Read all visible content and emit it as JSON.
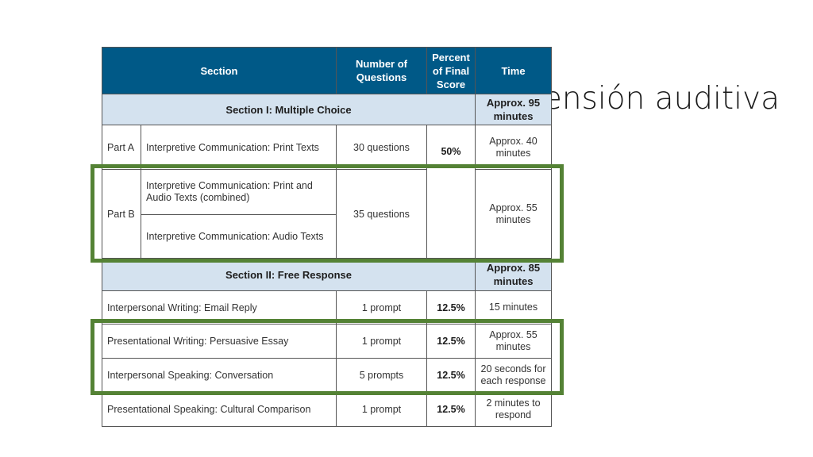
{
  "slide_title": "Comprensión auditiva",
  "headers": {
    "section": "Section",
    "num_questions": "Number of Questions",
    "percent": "Percent of Final Score",
    "time": "Time"
  },
  "section1": {
    "title": "Section I: Multiple Choice",
    "time": "Approx. 95 minutes",
    "percent": "50%",
    "part_a": {
      "label": "Part A",
      "desc": "Interpretive Communication: Print Texts",
      "questions": "30 questions",
      "time": "Approx. 40 minutes"
    },
    "part_b": {
      "label": "Part B",
      "desc1": "Interpretive Communication: Print and Audio Texts (combined)",
      "desc2": "Interpretive Communication: Audio Texts",
      "questions": "35 questions",
      "time": "Approx. 55 minutes"
    }
  },
  "section2": {
    "title": "Section II: Free Response",
    "time": "Approx. 85 minutes",
    "rows": [
      {
        "desc": "Interpersonal Writing: Email Reply",
        "questions": "1 prompt",
        "percent": "12.5%",
        "time": "15 minutes"
      },
      {
        "desc": "Presentational Writing: Persuasive Essay",
        "questions": "1 prompt",
        "percent": "12.5%",
        "time": "Approx. 55 minutes"
      },
      {
        "desc": "Interpersonal Speaking: Conversation",
        "questions": "5 prompts",
        "percent": "12.5%",
        "time": "20 seconds for each response"
      },
      {
        "desc": "Presentational Speaking: Cultural Comparison",
        "questions": "1 prompt",
        "percent": "12.5%",
        "time": "2 minutes to respond"
      }
    ]
  },
  "highlight_color": "#548235",
  "header_color": "#005987",
  "section_row_color": "#d4e2ef"
}
